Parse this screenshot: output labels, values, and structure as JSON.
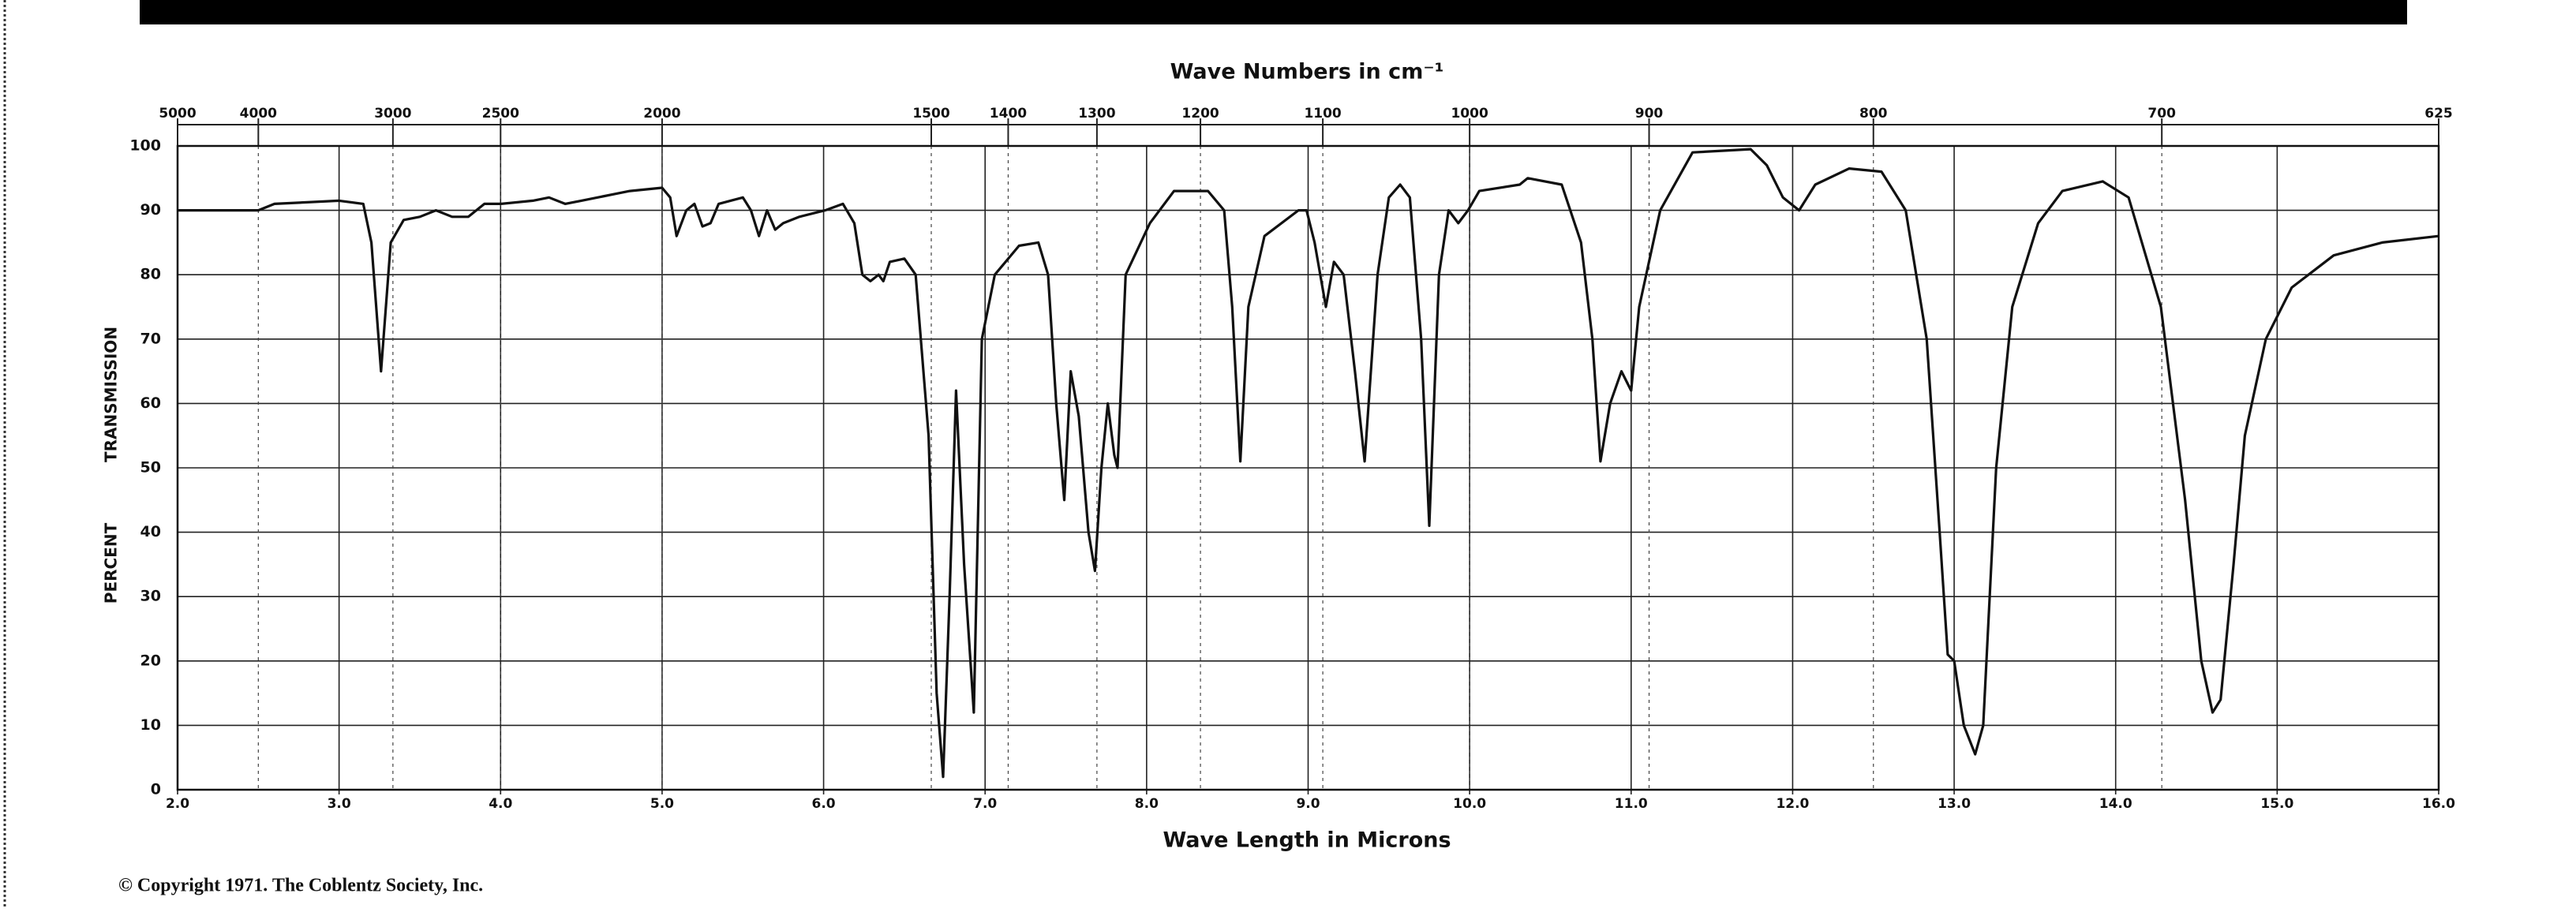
{
  "chart_data": {
    "type": "line",
    "title": "Wave Numbers in cm⁻¹",
    "xlabel": "Wave Length in Microns",
    "ylabel": [
      "PERCENT",
      "TRANSMISSION"
    ],
    "annotation": "© Copyright 1971.  The Coblentz Society, Inc.",
    "xlim": [
      2,
      16
    ],
    "ylim": [
      0,
      100
    ],
    "grid": true,
    "xticks": [
      {
        "value": 2,
        "label": "2.0"
      },
      {
        "value": 3,
        "label": "3.0"
      },
      {
        "value": 4,
        "label": "4.0"
      },
      {
        "value": 5,
        "label": "5.0"
      },
      {
        "value": 6,
        "label": "6.0"
      },
      {
        "value": 7,
        "label": "7.0"
      },
      {
        "value": 8,
        "label": "8.0"
      },
      {
        "value": 9,
        "label": "9.0"
      },
      {
        "value": 10,
        "label": "10.0"
      },
      {
        "value": 11,
        "label": "11.0"
      },
      {
        "value": 12,
        "label": "12.0"
      },
      {
        "value": 13,
        "label": "13.0"
      },
      {
        "value": 14,
        "label": "14.0"
      },
      {
        "value": 15,
        "label": "15.0"
      },
      {
        "value": 16,
        "label": "16.0"
      }
    ],
    "yticks": [
      0,
      10,
      20,
      30,
      40,
      50,
      60,
      70,
      80,
      90,
      100
    ],
    "x2ticks": [
      5000,
      4000,
      3000,
      2500,
      2000,
      1500,
      1400,
      1300,
      1200,
      1100,
      1000,
      900,
      800,
      700,
      625
    ],
    "series": [
      {
        "name": "TRANSMISSION",
        "color": "#111111",
        "x": [
          2.0,
          2.5,
          2.6,
          3.0,
          3.15,
          3.2,
          3.26,
          3.32,
          3.4,
          3.5,
          3.6,
          3.7,
          3.8,
          3.9,
          4.0,
          4.2,
          4.3,
          4.4,
          4.5,
          4.7,
          4.8,
          5.0,
          5.05,
          5.09,
          5.15,
          5.2,
          5.25,
          5.3,
          5.35,
          5.5,
          5.55,
          5.6,
          5.65,
          5.7,
          5.75,
          5.85,
          6.01,
          6.12,
          6.19,
          6.24,
          6.29,
          6.34,
          6.37,
          6.41,
          6.5,
          6.57,
          6.65,
          6.7,
          6.74,
          6.78,
          6.82,
          6.87,
          6.93,
          6.98,
          7.06,
          7.21,
          7.33,
          7.39,
          7.44,
          7.49,
          7.53,
          7.58,
          7.64,
          7.68,
          7.72,
          7.76,
          7.8,
          7.82,
          7.87,
          8.02,
          8.17,
          8.38,
          8.48,
          8.53,
          8.58,
          8.63,
          8.73,
          8.94,
          8.99,
          9.04,
          9.11,
          9.16,
          9.22,
          9.29,
          9.35,
          9.43,
          9.5,
          9.57,
          9.63,
          9.7,
          9.75,
          9.81,
          9.87,
          9.93,
          9.99,
          10.06,
          10.31,
          10.36,
          10.57,
          10.69,
          10.76,
          10.81,
          10.87,
          10.94,
          11.0,
          11.05,
          11.18,
          11.38,
          11.74,
          11.84,
          11.94,
          12.04,
          12.14,
          12.35,
          12.55,
          12.7,
          12.83,
          12.91,
          12.96,
          13.0,
          13.06,
          13.13,
          13.18,
          13.26,
          13.36,
          13.52,
          13.67,
          13.92,
          14.08,
          14.28,
          14.43,
          14.53,
          14.6,
          14.65,
          14.73,
          14.8,
          14.93,
          15.09,
          15.35,
          15.65,
          16.0
        ],
        "values": [
          90,
          90,
          91,
          91.5,
          91,
          85,
          65,
          85,
          88.5,
          89,
          90,
          89,
          89,
          91,
          91,
          91.5,
          92,
          91,
          91.5,
          92.5,
          93,
          93.5,
          92,
          86,
          90,
          91,
          87.5,
          88,
          91,
          92,
          90,
          86,
          90,
          87,
          88,
          89,
          90,
          91,
          88,
          80,
          79,
          80,
          79,
          82,
          82.5,
          80,
          55,
          15,
          2,
          30,
          62,
          35,
          12,
          70,
          80,
          84.5,
          85,
          80,
          60,
          45,
          65,
          58,
          40,
          34,
          50,
          60,
          52,
          50,
          80,
          88,
          93,
          93,
          90,
          75,
          51,
          75,
          86,
          90,
          90,
          85,
          75,
          82,
          80,
          65,
          51,
          80,
          92,
          94,
          92,
          70,
          41,
          80,
          90,
          88,
          90,
          93,
          94,
          95,
          94,
          85,
          70,
          51,
          60,
          65,
          62,
          75,
          90,
          99,
          99.5,
          97,
          92,
          90,
          94,
          96.5,
          96,
          90,
          70,
          40,
          21,
          20,
          10,
          5.5,
          10,
          50,
          75,
          88,
          93,
          94.5,
          92,
          75,
          45,
          20,
          12,
          14,
          35,
          55,
          70,
          78,
          83,
          85,
          86
        ]
      }
    ]
  }
}
